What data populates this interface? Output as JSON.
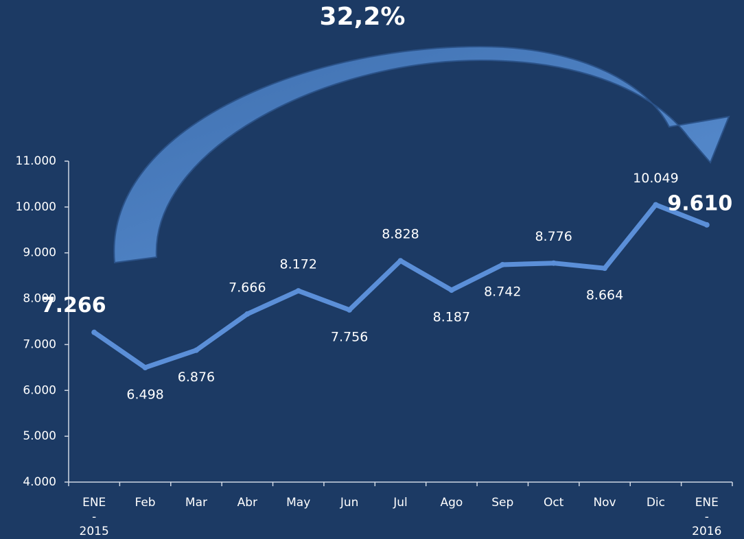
{
  "chart_data": {
    "type": "line",
    "annotation": "32,2%",
    "categories": [
      "ENE - 2015",
      "Feb",
      "Mar",
      "Abr",
      "May",
      "Jun",
      "Jul",
      "Ago",
      "Sep",
      "Oct",
      "Nov",
      "Dic",
      "ENE - 2016"
    ],
    "values": [
      7266,
      6498,
      6876,
      7666,
      8172,
      7756,
      8828,
      8187,
      8742,
      8776,
      8664,
      10049,
      9610
    ],
    "value_labels": [
      "7.266",
      "6.498",
      "6.876",
      "7.666",
      "8.172",
      "7.756",
      "8.828",
      "8.187",
      "8.742",
      "8.776",
      "8.664",
      "10.049",
      "9.610"
    ],
    "color": "#5b8fd8",
    "ylim": [
      4000,
      11000
    ],
    "yticks": [
      {
        "value": 4000,
        "label": "4.000"
      },
      {
        "value": 5000,
        "label": "5.000"
      },
      {
        "value": 6000,
        "label": "6.000"
      },
      {
        "value": 7000,
        "label": "7.000"
      },
      {
        "value": 8000,
        "label": "8.000"
      },
      {
        "value": 9000,
        "label": "9.000"
      },
      {
        "value": 10000,
        "label": "10.000"
      },
      {
        "value": 11000,
        "label": "11.000"
      }
    ]
  }
}
